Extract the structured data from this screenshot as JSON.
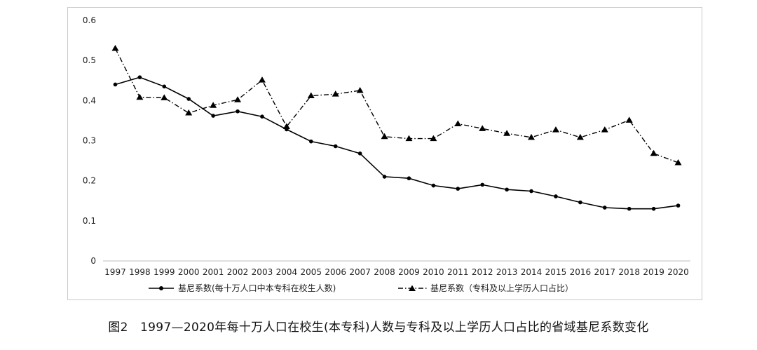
{
  "caption": "图2　1997—2020年每十万人口在校生(本专科)人数与专科及以上学历人口占比的省域基尼系数变化",
  "chart_data": {
    "type": "line",
    "title": "",
    "xlabel": "",
    "ylabel": "",
    "ylim": [
      0,
      0.6
    ],
    "yticks": [
      "0",
      "0.1",
      "0.2",
      "0.3",
      "0.4",
      "0.5",
      "0.6"
    ],
    "grid": false,
    "legend_position": "bottom",
    "categories": [
      "1997",
      "1998",
      "1999",
      "2000",
      "2001",
      "2002",
      "2003",
      "2004",
      "2005",
      "2006",
      "2007",
      "2008",
      "2009",
      "2010",
      "2011",
      "2012",
      "2013",
      "2014",
      "2015",
      "2016",
      "2017",
      "2018",
      "2019",
      "2020"
    ],
    "series": [
      {
        "name": "基尼系数(每十万人口中本专科在校生人数)",
        "style": "solid-circle",
        "color": "#000000",
        "values": [
          0.44,
          0.458,
          0.435,
          0.404,
          0.362,
          0.373,
          0.36,
          0.328,
          0.298,
          0.286,
          0.268,
          0.21,
          0.206,
          0.188,
          0.18,
          0.19,
          0.178,
          0.174,
          0.161,
          0.146,
          0.133,
          0.13,
          0.13,
          0.138
        ]
      },
      {
        "name": "基尼系数（专科及以上学历人口占比）",
        "style": "dashdot-triangle",
        "color": "#000000",
        "values": [
          0.53,
          0.408,
          0.407,
          0.369,
          0.388,
          0.402,
          0.451,
          0.335,
          0.412,
          0.416,
          0.425,
          0.31,
          0.305,
          0.305,
          0.342,
          0.33,
          0.318,
          0.308,
          0.327,
          0.308,
          0.327,
          0.351,
          0.268,
          0.245
        ]
      }
    ]
  }
}
